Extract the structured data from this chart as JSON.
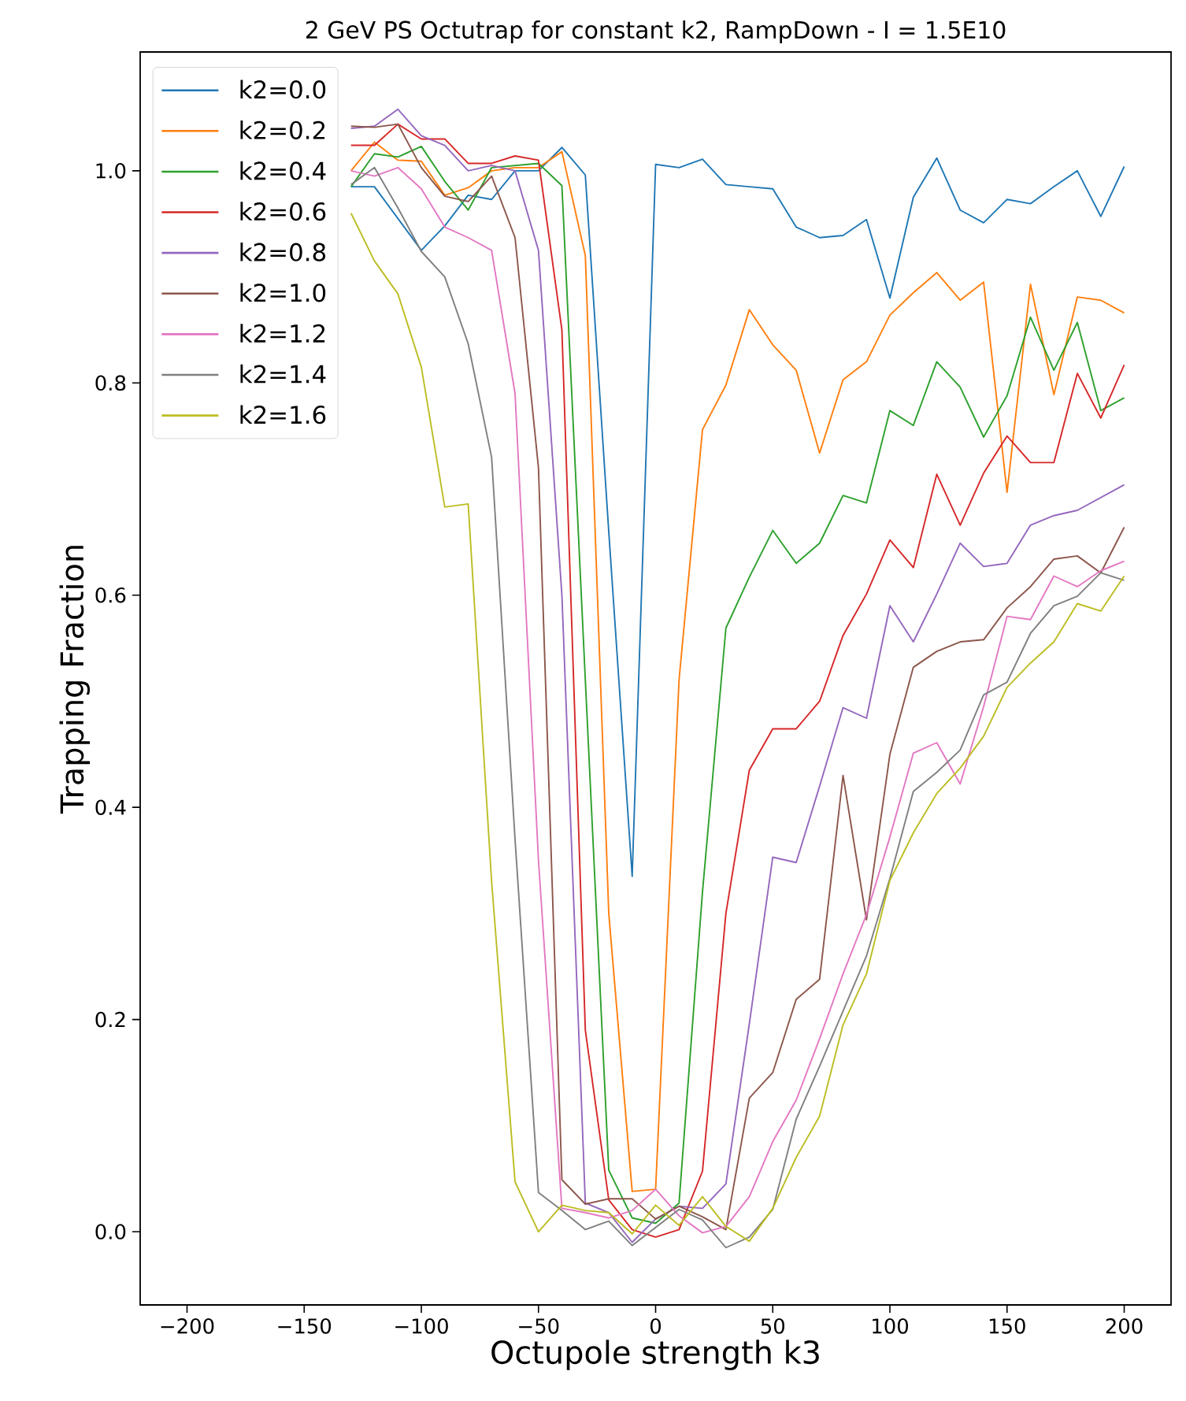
{
  "chart_data": {
    "type": "line",
    "title": "2 GeV PS Octutrap for constant k2, RampDown - I = 1.5E10",
    "xlabel": "Octupole strength k3",
    "ylabel": "Trapping Fraction",
    "x": [
      -130,
      -120,
      -110,
      -100,
      -90,
      -80,
      -70,
      -60,
      -50,
      -40,
      -30,
      -20,
      -10,
      0,
      10,
      20,
      30,
      40,
      50,
      60,
      70,
      80,
      90,
      100,
      110,
      120,
      130,
      140,
      150,
      160,
      170,
      180,
      190,
      200
    ],
    "xlim": [
      -220,
      220
    ],
    "ylim": [
      -0.069,
      1.112
    ],
    "xticks": [
      {
        "value": -200,
        "label": "−200"
      },
      {
        "value": -150,
        "label": "−150"
      },
      {
        "value": -100,
        "label": "−100"
      },
      {
        "value": -50,
        "label": "−50"
      },
      {
        "value": 0,
        "label": "0"
      },
      {
        "value": 50,
        "label": "50"
      },
      {
        "value": 100,
        "label": "100"
      },
      {
        "value": 150,
        "label": "150"
      },
      {
        "value": 200,
        "label": "200"
      }
    ],
    "yticks": [
      {
        "value": 0,
        "label": "0.0"
      },
      {
        "value": 0.2,
        "label": "0.2"
      },
      {
        "value": 0.4,
        "label": "0.4"
      },
      {
        "value": 0.6,
        "label": "0.6"
      },
      {
        "value": 0.8,
        "label": "0.8"
      },
      {
        "value": 1.0,
        "label": "1.0"
      }
    ],
    "legend": "top left",
    "grid": false,
    "marker": "none",
    "line_style": "solid",
    "series": [
      {
        "name": "k2=0.0",
        "color": "#1f77b4",
        "values": [
          0.985,
          0.985,
          0.955,
          0.925,
          0.948,
          0.977,
          0.973,
          1.0,
          1.0,
          1.022,
          0.996,
          0.66,
          0.335,
          1.006,
          1.003,
          1.011,
          0.987,
          0.985,
          0.983,
          0.947,
          0.937,
          0.939,
          0.954,
          0.88,
          0.975,
          1.012,
          0.963,
          0.951,
          0.973,
          0.969,
          0.985,
          1.0,
          0.957,
          1.004
        ]
      },
      {
        "name": "k2=0.2",
        "color": "#ff7f0e",
        "values": [
          1.0,
          1.027,
          1.01,
          1.009,
          0.977,
          0.984,
          1.0,
          1.003,
          1.003,
          1.018,
          0.92,
          0.3,
          0.038,
          0.04,
          0.52,
          0.756,
          0.798,
          0.869,
          0.836,
          0.812,
          0.734,
          0.803,
          0.82,
          0.864,
          0.885,
          0.904,
          0.878,
          0.895,
          0.697,
          0.893,
          0.789,
          0.881,
          0.878,
          0.866
        ]
      },
      {
        "name": "k2=0.4",
        "color": "#2ca02c",
        "values": [
          0.985,
          1.016,
          1.013,
          1.023,
          0.99,
          0.963,
          1.003,
          1.005,
          1.007,
          0.986,
          0.52,
          0.058,
          0.013,
          0.008,
          0.027,
          0.32,
          0.569,
          0.617,
          0.661,
          0.63,
          0.649,
          0.694,
          0.687,
          0.774,
          0.76,
          0.82,
          0.796,
          0.749,
          0.788,
          0.862,
          0.812,
          0.857,
          0.774,
          0.786
        ]
      },
      {
        "name": "k2=0.6",
        "color": "#d62728",
        "values": [
          1.024,
          1.024,
          1.044,
          1.03,
          1.03,
          1.007,
          1.007,
          1.014,
          1.01,
          0.85,
          0.19,
          0.03,
          0.002,
          -0.005,
          0.002,
          0.057,
          0.3,
          0.435,
          0.474,
          0.474,
          0.5,
          0.562,
          0.601,
          0.652,
          0.626,
          0.714,
          0.666,
          0.715,
          0.75,
          0.725,
          0.725,
          0.809,
          0.767,
          0.817
        ]
      },
      {
        "name": "k2=0.8",
        "color": "#9467bd",
        "values": [
          1.04,
          1.042,
          1.058,
          1.033,
          1.024,
          1.0,
          1.005,
          1.0,
          0.925,
          0.6,
          0.027,
          0.018,
          -0.01,
          0.012,
          0.024,
          0.022,
          0.045,
          0.196,
          0.353,
          0.348,
          0.42,
          0.494,
          0.484,
          0.59,
          0.556,
          0.601,
          0.649,
          0.627,
          0.63,
          0.666,
          0.675,
          0.68,
          0.692,
          0.704
        ]
      },
      {
        "name": "k2=1.0",
        "color": "#8c564b",
        "values": [
          1.042,
          1.041,
          1.044,
          1.003,
          0.976,
          0.971,
          0.995,
          0.937,
          0.72,
          0.049,
          0.026,
          0.031,
          0.031,
          0.012,
          0.024,
          0.014,
          0.002,
          0.126,
          0.15,
          0.219,
          0.238,
          0.43,
          0.294,
          0.45,
          0.532,
          0.547,
          0.556,
          0.558,
          0.588,
          0.608,
          0.634,
          0.637,
          0.621,
          0.664
        ]
      },
      {
        "name": "k2=1.2",
        "color": "#e377c2",
        "values": [
          1.0,
          0.995,
          1.003,
          0.983,
          0.947,
          0.937,
          0.925,
          0.79,
          0.35,
          0.022,
          0.018,
          0.013,
          0.02,
          0.04,
          0.015,
          -0.001,
          0.005,
          0.033,
          0.085,
          0.124,
          0.182,
          0.243,
          0.299,
          0.372,
          0.451,
          0.461,
          0.422,
          0.495,
          0.58,
          0.577,
          0.618,
          0.608,
          0.623,
          0.632
        ]
      },
      {
        "name": "k2=1.4",
        "color": "#7f7f7f",
        "values": [
          0.987,
          1.003,
          0.965,
          0.924,
          0.9,
          0.837,
          0.73,
          0.37,
          0.037,
          0.02,
          0.002,
          0.01,
          -0.013,
          0.004,
          0.021,
          0.011,
          -0.015,
          -0.005,
          0.021,
          0.106,
          0.156,
          0.208,
          0.26,
          0.333,
          0.415,
          0.433,
          0.454,
          0.506,
          0.518,
          0.564,
          0.59,
          0.599,
          0.621,
          0.614
        ]
      },
      {
        "name": "k2=1.6",
        "color": "#bcbd22",
        "values": [
          0.96,
          0.915,
          0.884,
          0.815,
          0.683,
          0.686,
          0.33,
          0.047,
          0.0,
          0.025,
          0.02,
          0.018,
          -0.002,
          0.025,
          0.006,
          0.033,
          0.005,
          -0.009,
          0.022,
          0.07,
          0.109,
          0.195,
          0.243,
          0.331,
          0.376,
          0.413,
          0.437,
          0.467,
          0.513,
          0.536,
          0.556,
          0.592,
          0.585,
          0.618
        ]
      }
    ]
  }
}
